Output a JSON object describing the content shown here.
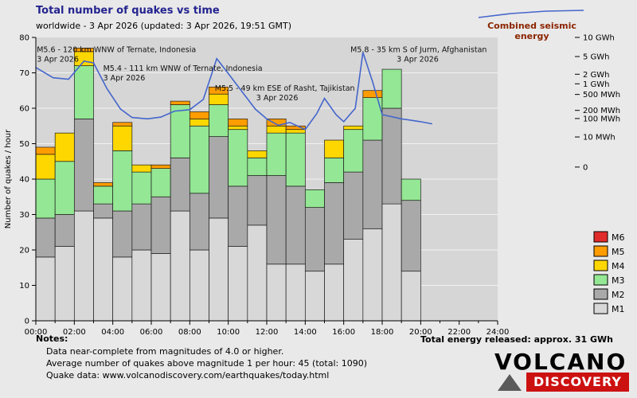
{
  "header": {
    "title": "Total number of quakes vs time",
    "subtitle": "worldwide -  3 Apr 2026 (updated: 3 Apr 2026, 19:51 GMT)",
    "energy_label": "Combined seismic energy"
  },
  "notes": {
    "heading": "Notes:",
    "lines": [
      "Data near-complete from magnitudes of 4.0 or higher.",
      "Average number of quakes above magnitude 1 per hour: 45 (total: 1090)",
      "Quake data: www.volcanodiscovery.com/earthquakes/today.html"
    ],
    "total_energy": "Total energy released: approx. 31 GWh"
  },
  "logo": {
    "line1": "VOLCANO",
    "line2": "DISCOVERY"
  },
  "chart_data": {
    "type": "bar",
    "variant": "stacked-hourly-bars-with-energy-line",
    "title": "Total number of quakes vs time",
    "xlabel": "",
    "ylabel": "Number of quakes / hour",
    "ylim": [
      0,
      80
    ],
    "yticks": [
      0,
      10,
      20,
      30,
      40,
      50,
      60,
      70,
      80
    ],
    "x_hours": [
      0,
      24
    ],
    "xticks": [
      {
        "h": 0,
        "label": "00:00"
      },
      {
        "h": 2,
        "label": "02:00"
      },
      {
        "h": 4,
        "label": "04:00"
      },
      {
        "h": 6,
        "label": "06:00"
      },
      {
        "h": 8,
        "label": "08:00"
      },
      {
        "h": 10,
        "label": "10:00"
      },
      {
        "h": 12,
        "label": "12:00"
      },
      {
        "h": 14,
        "label": "14:00"
      },
      {
        "h": 16,
        "label": "16:00"
      },
      {
        "h": 18,
        "label": "18:00"
      },
      {
        "h": 20,
        "label": "20:00"
      },
      {
        "h": 22,
        "label": "22:00"
      },
      {
        "h": 24,
        "label": "24:00"
      }
    ],
    "series_order": [
      "M1",
      "M2",
      "M3",
      "M4",
      "M5",
      "M6"
    ],
    "legend": [
      {
        "name": "M6",
        "color": "#e02b2b"
      },
      {
        "name": "M5",
        "color": "#ff9d00"
      },
      {
        "name": "M4",
        "color": "#ffd700"
      },
      {
        "name": "M3",
        "color": "#94e794"
      },
      {
        "name": "M2",
        "color": "#a9a9a9"
      },
      {
        "name": "M1",
        "color": "#d8d8d8"
      }
    ],
    "bars": [
      {
        "hour": "00:00",
        "M1": 18,
        "M2": 11,
        "M3": 11,
        "M4": 7,
        "M5": 2,
        "M6": 0
      },
      {
        "hour": "01:00",
        "M1": 21,
        "M2": 9,
        "M3": 15,
        "M4": 8,
        "M5": 0,
        "M6": 0
      },
      {
        "hour": "02:00",
        "M1": 31,
        "M2": 26,
        "M3": 15,
        "M4": 4,
        "M5": 1,
        "M6": 0
      },
      {
        "hour": "03:00",
        "M1": 29,
        "M2": 4,
        "M3": 5,
        "M4": 0,
        "M5": 1,
        "M6": 0
      },
      {
        "hour": "04:00",
        "M1": 18,
        "M2": 13,
        "M3": 17,
        "M4": 7,
        "M5": 1,
        "M6": 0
      },
      {
        "hour": "05:00",
        "M1": 20,
        "M2": 13,
        "M3": 9,
        "M4": 2,
        "M5": 0,
        "M6": 0
      },
      {
        "hour": "06:00",
        "M1": 19,
        "M2": 16,
        "M3": 8,
        "M4": 0,
        "M5": 1,
        "M6": 0
      },
      {
        "hour": "07:00",
        "M1": 31,
        "M2": 15,
        "M3": 15,
        "M4": 0,
        "M5": 1,
        "M6": 0
      },
      {
        "hour": "08:00",
        "M1": 20,
        "M2": 16,
        "M3": 19,
        "M4": 2,
        "M5": 2,
        "M6": 0
      },
      {
        "hour": "09:00",
        "M1": 29,
        "M2": 23,
        "M3": 9,
        "M4": 3,
        "M5": 2,
        "M6": 0
      },
      {
        "hour": "10:00",
        "M1": 21,
        "M2": 17,
        "M3": 16,
        "M4": 1,
        "M5": 2,
        "M6": 0
      },
      {
        "hour": "11:00",
        "M1": 27,
        "M2": 14,
        "M3": 5,
        "M4": 2,
        "M5": 0,
        "M6": 0
      },
      {
        "hour": "12:00",
        "M1": 16,
        "M2": 25,
        "M3": 12,
        "M4": 2,
        "M5": 2,
        "M6": 0
      },
      {
        "hour": "13:00",
        "M1": 16,
        "M2": 22,
        "M3": 15,
        "M4": 1,
        "M5": 1,
        "M6": 0
      },
      {
        "hour": "14:00",
        "M1": 14,
        "M2": 18,
        "M3": 5,
        "M4": 0,
        "M5": 0,
        "M6": 0
      },
      {
        "hour": "15:00",
        "M1": 16,
        "M2": 23,
        "M3": 7,
        "M4": 5,
        "M5": 0,
        "M6": 0
      },
      {
        "hour": "16:00",
        "M1": 23,
        "M2": 19,
        "M3": 12,
        "M4": 1,
        "M5": 0,
        "M6": 0
      },
      {
        "hour": "17:00",
        "M1": 26,
        "M2": 25,
        "M3": 12,
        "M4": 0,
        "M5": 2,
        "M6": 0
      },
      {
        "hour": "18:00",
        "M1": 33,
        "M2": 27,
        "M3": 11,
        "M4": 0,
        "M5": 0,
        "M6": 0
      },
      {
        "hour": "19:00",
        "M1": 14,
        "M2": 20,
        "M3": 6,
        "M4": 0,
        "M5": 0,
        "M6": 0
      }
    ],
    "energy_line": {
      "label": "Combined seismic energy",
      "color": "#4466cc",
      "units_note": "points are [hour, value in left-axis units]; right axis is logarithmic energy",
      "points": [
        [
          0,
          71.5
        ],
        [
          0.9,
          68.6
        ],
        [
          1.7,
          68.2
        ],
        [
          2.5,
          73.3
        ],
        [
          3.0,
          72.8
        ],
        [
          3.7,
          65.5
        ],
        [
          4.4,
          59.8
        ],
        [
          5.0,
          57.4
        ],
        [
          5.8,
          57.0
        ],
        [
          6.5,
          57.5
        ],
        [
          7.2,
          59.2
        ],
        [
          8.0,
          59.6
        ],
        [
          8.7,
          62.5
        ],
        [
          9.4,
          74.0
        ],
        [
          10.0,
          69.8
        ],
        [
          10.7,
          64.8
        ],
        [
          11.4,
          59.8
        ],
        [
          12.0,
          57.0
        ],
        [
          12.6,
          55.2
        ],
        [
          13.2,
          56.0
        ],
        [
          14.0,
          54.0
        ],
        [
          14.6,
          58.5
        ],
        [
          15.0,
          62.8
        ],
        [
          15.6,
          58.2
        ],
        [
          16.0,
          56.2
        ],
        [
          16.6,
          60.0
        ],
        [
          17.0,
          75.8
        ],
        [
          17.5,
          67.5
        ],
        [
          18.0,
          58.2
        ],
        [
          19.0,
          57.0
        ],
        [
          20.0,
          56.2
        ],
        [
          20.6,
          55.6
        ]
      ]
    },
    "right_axis": {
      "labels": [
        {
          "text": "10 GWh",
          "v": 80
        },
        {
          "text": "5 GWh",
          "v": 74.6
        },
        {
          "text": "2 GWh",
          "v": 69.6
        },
        {
          "text": "1 GWh",
          "v": 66.9
        },
        {
          "text": "500 MWh",
          "v": 63.9
        },
        {
          "text": "200 MWh",
          "v": 59.4
        },
        {
          "text": "100 MWh",
          "v": 57.1
        },
        {
          "text": "10 MWh",
          "v": 51.9
        },
        {
          "text": "0",
          "v": 43.4
        }
      ]
    },
    "annotations": [
      {
        "text": "M5.6 - 120 km WNW of Ternate, Indonesia",
        "date": "3 Apr 2026",
        "h": 0.05,
        "v": 75.8,
        "date_dx": 0
      },
      {
        "text": "M5.4 - 111 km WNW of Ternate, Indonesia",
        "date": "3 Apr 2026",
        "h": 3.5,
        "v": 70.6,
        "date_dx": 0
      },
      {
        "text": "M5.5 - 49 km ESE of Rasht, Tajikistan",
        "date": "3 Apr 2026",
        "h": 9.3,
        "v": 65.0,
        "date_dx": 52
      },
      {
        "text": "M5.8 - 35 km S of Jurm, Afghanistan",
        "date": "3 Apr 2026",
        "h": 16.35,
        "v": 75.8,
        "date_dx": 58
      }
    ],
    "colors": {
      "page_bg": "#e9e9e9",
      "plot_bg": "#d6d6d6",
      "grid": "#ffffff",
      "axis": "#000000",
      "title": "#24248f",
      "energy_label": "#8b2500",
      "logo_red": "#cc1111",
      "M1": "#d8d8d8",
      "M2": "#a9a9a9",
      "M3": "#94e794",
      "M4": "#ffd700",
      "M5": "#ff9d00",
      "M6": "#e02b2b"
    }
  }
}
